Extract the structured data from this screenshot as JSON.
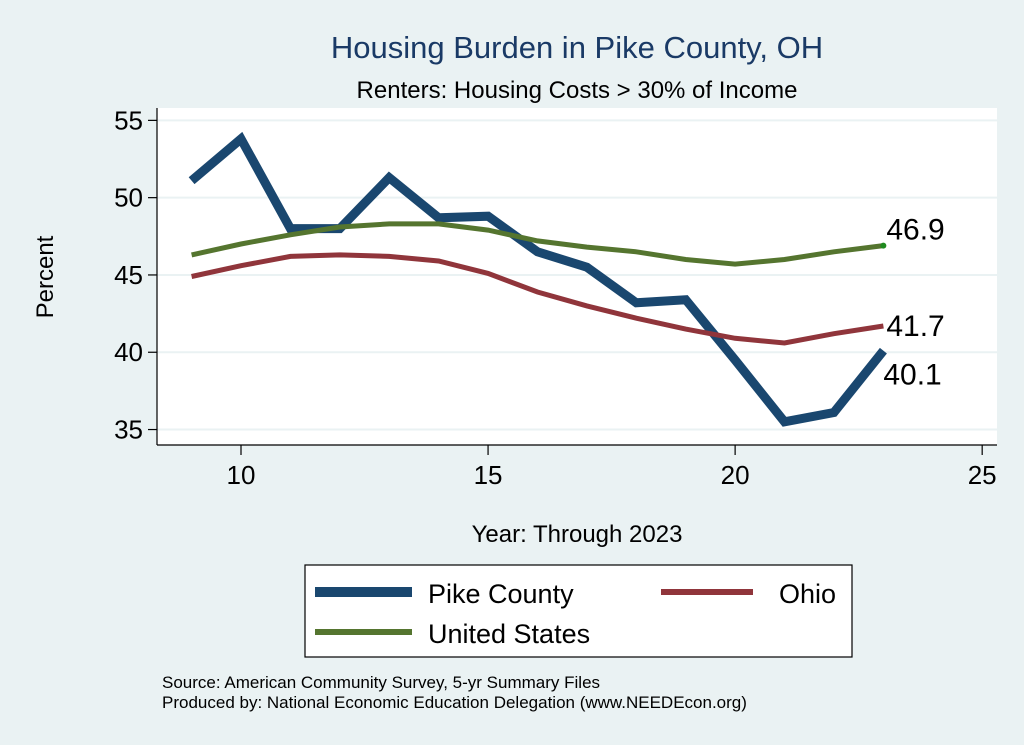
{
  "chart_data": {
    "type": "line",
    "title": "Housing Burden in Pike County, OH",
    "subtitle": "Renters: Housing Costs > 30% of Income",
    "xlabel": "Year: Through 2023",
    "ylabel": "Percent",
    "x": [
      9,
      10,
      11,
      12,
      13,
      14,
      15,
      16,
      17,
      18,
      19,
      20,
      21,
      22,
      23
    ],
    "xlim": [
      8.3,
      25.3
    ],
    "ylim": [
      34.0,
      55.8
    ],
    "xticks": [
      10,
      15,
      20,
      25
    ],
    "yticks": [
      35,
      40,
      45,
      50,
      55
    ],
    "grid": true,
    "legend_position": "bottom",
    "series": [
      {
        "name": "Pike County",
        "color": "#1a476f",
        "values": [
          51.1,
          53.8,
          48.0,
          48.0,
          51.3,
          48.7,
          48.8,
          46.5,
          45.5,
          43.2,
          43.4,
          39.5,
          35.5,
          36.1,
          40.1
        ],
        "end_label": "40.1"
      },
      {
        "name": "Ohio",
        "color": "#90353b",
        "values": [
          44.9,
          45.6,
          46.2,
          46.3,
          46.2,
          45.9,
          45.1,
          43.9,
          43.0,
          42.2,
          41.5,
          40.9,
          40.6,
          41.2,
          41.7
        ],
        "end_label": "41.7"
      },
      {
        "name": "United States",
        "color": "#55752f",
        "values": [
          46.3,
          47.0,
          47.6,
          48.1,
          48.3,
          48.3,
          47.9,
          47.2,
          46.8,
          46.5,
          46.0,
          45.7,
          46.0,
          46.5,
          46.9
        ],
        "end_label": "46.9"
      }
    ],
    "notes": [
      "Source: American Community Survey, 5-yr Summary Files",
      "Produced by: National Economic Education Delegation (www.NEEDEcon.org)"
    ]
  },
  "colors": {
    "background": "#eaf2f3",
    "plot_background": "#ffffff",
    "grid": "#eaf2f3",
    "title": "#1a3a66"
  }
}
